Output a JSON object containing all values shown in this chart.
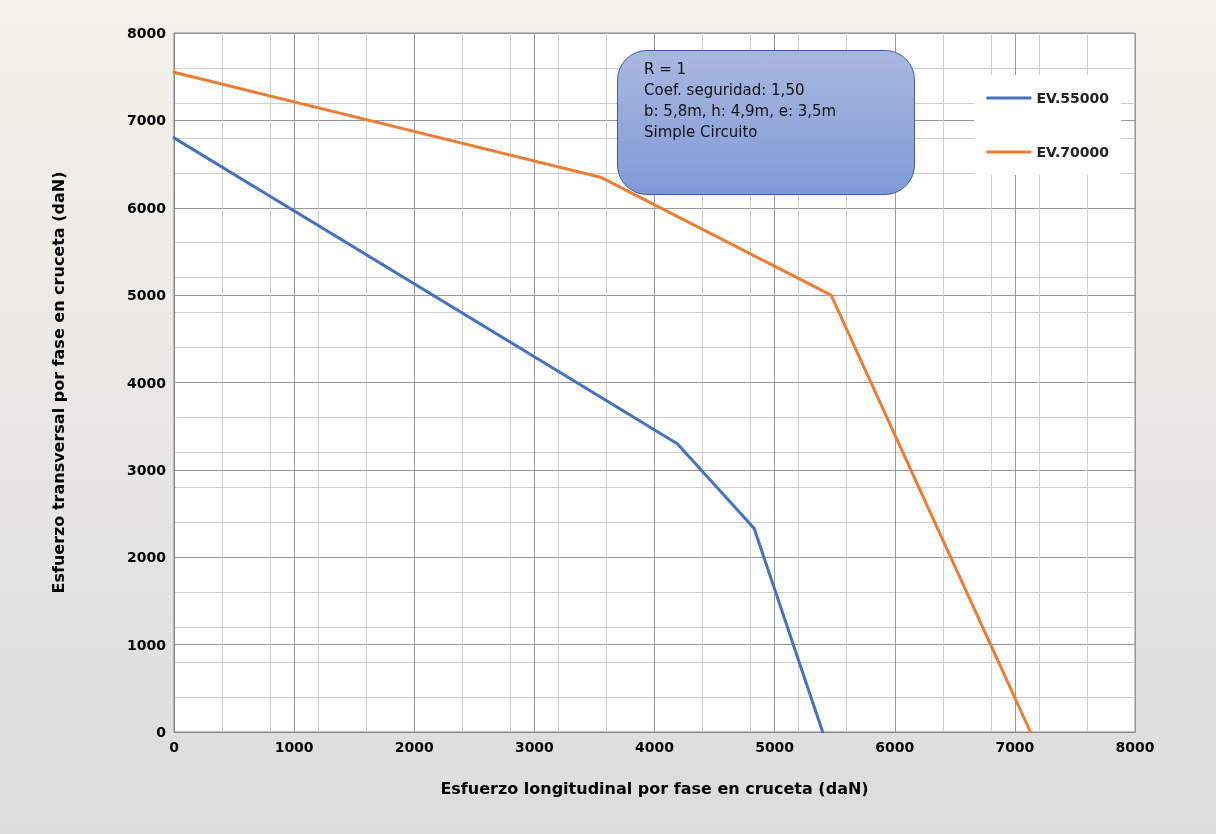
{
  "chart_data": {
    "type": "line",
    "xlabel": "Esfuerzo longitudinal por fase en cruceta (daN)",
    "ylabel": "Esfuerzo transversal por fase en cruceta (daN)",
    "series": [
      {
        "name": "EV.55000",
        "color": "#4472c4",
        "x": [
          0,
          4190,
          4830,
          5400
        ],
        "values": [
          6800,
          3300,
          2330,
          0
        ]
      },
      {
        "name": "EV.70000",
        "color": "#ed7d31",
        "x": [
          0,
          3550,
          5470,
          7130
        ],
        "values": [
          7550,
          6350,
          5000,
          0
        ]
      }
    ],
    "xlim": [
      0,
      8000
    ],
    "xticks": [
      0,
      1000,
      2000,
      3000,
      4000,
      5000,
      6000,
      7000,
      8000
    ],
    "ylim": [
      0,
      8000
    ],
    "yticks": [
      0,
      1000,
      2000,
      3000,
      4000,
      5000,
      6000,
      7000,
      8000
    ],
    "annotations": [
      "R = 1\nCoef. seguridad: 1,50\nb: 5,8m, h: 4,9m, e: 3,5m\nSimple Circuito"
    ],
    "grid": true,
    "legend": "top right",
    "marker": "none",
    "line_style": "solid"
  }
}
